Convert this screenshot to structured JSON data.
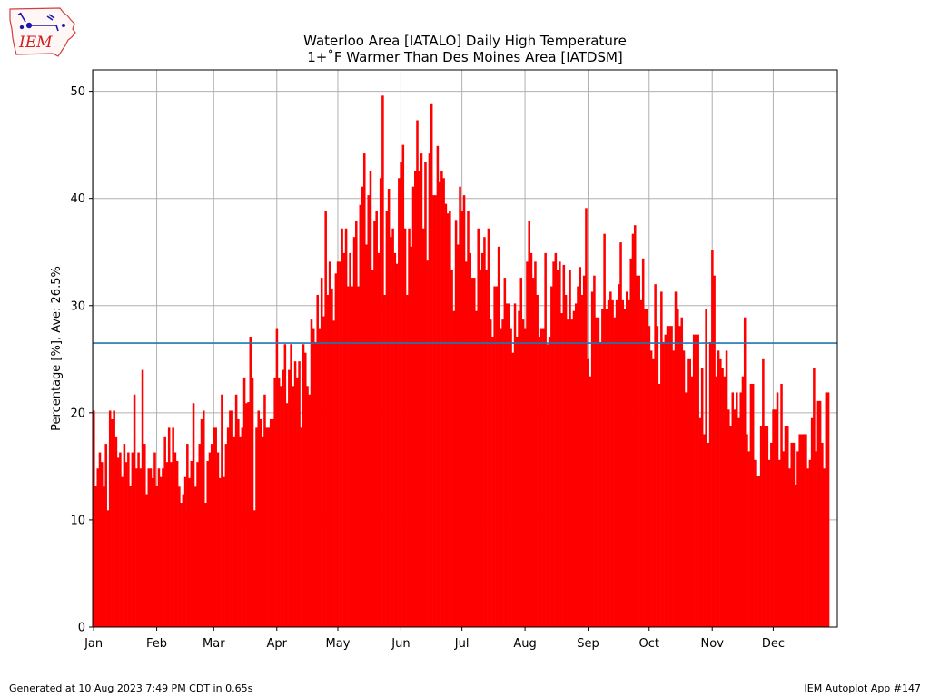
{
  "header": {
    "title_line1": "Waterloo Area [IATALO] Daily High Temperature",
    "title_line2": "1+˚F Warmer Than Des Moines Area [IATDSM]"
  },
  "logo": {
    "text": "IEM",
    "icon": "iowa-state-outline-logo-icon"
  },
  "footer": {
    "generated": "Generated at 10 Aug 2023 7:49 PM CDT in 0.65s",
    "app": "IEM Autoplot App #147"
  },
  "colors": {
    "bars": "#ff0000",
    "average_line": "#1f77b4",
    "grid": "#b0b0b0"
  },
  "chart_data": {
    "type": "bar",
    "title": "Waterloo Area [IATALO] Daily High Temperature\n1+˚F Warmer Than Des Moines Area [IATDSM]",
    "ylabel": "Percentage [%], Ave: 26.5%",
    "xlabel": "",
    "ylim": [
      0,
      52
    ],
    "xlim_doy": [
      1,
      366
    ],
    "yticks": [
      0,
      10,
      20,
      30,
      40,
      50
    ],
    "xticks": [
      {
        "label": "Jan",
        "doy": 1
      },
      {
        "label": "Feb",
        "doy": 32
      },
      {
        "label": "Mar",
        "doy": 60
      },
      {
        "label": "Apr",
        "doy": 91
      },
      {
        "label": "May",
        "doy": 121
      },
      {
        "label": "Jun",
        "doy": 152
      },
      {
        "label": "Jul",
        "doy": 182
      },
      {
        "label": "Aug",
        "doy": 213
      },
      {
        "label": "Sep",
        "doy": 244
      },
      {
        "label": "Oct",
        "doy": 274
      },
      {
        "label": "Nov",
        "doy": 305
      },
      {
        "label": "Dec",
        "doy": 335
      }
    ],
    "grid": true,
    "average": 26.5,
    "series": [
      {
        "day_of_year_start": 1,
        "values": [
          20.2,
          13.2,
          14.8,
          16.3,
          15.4,
          13.1,
          17.1,
          10.9,
          20.2,
          19.4,
          20.2,
          17.8,
          15.8,
          16.3,
          14.0,
          17.1,
          15.4,
          16.3,
          13.2,
          16.3,
          21.7,
          14.8,
          16.3,
          14.8,
          24.0,
          17.1,
          12.4,
          14.8,
          14.8,
          13.9,
          16.3,
          13.2,
          14.8,
          14.0,
          14.8,
          17.8,
          15.4,
          18.6,
          15.4,
          18.6,
          16.3,
          15.5,
          13.1,
          11.6,
          12.4,
          14.0,
          17.1,
          13.9,
          15.5,
          20.9,
          13.1,
          15.4,
          17.1,
          19.4,
          20.2,
          11.6,
          15.5,
          16.3,
          17.1,
          18.6,
          18.6,
          16.3,
          13.9,
          21.7,
          14.0,
          17.1,
          18.6,
          20.2,
          20.2,
          17.8,
          21.7,
          19.4,
          17.8,
          18.6,
          23.3,
          20.9,
          21.0,
          27.1,
          23.3,
          10.9,
          18.6,
          20.2,
          19.4,
          17.8,
          21.7,
          18.6,
          18.6,
          19.4,
          19.4,
          23.3,
          27.9,
          23.3,
          22.5,
          24.0,
          26.4,
          20.9,
          24.0,
          26.4,
          22.5,
          24.8,
          23.3,
          24.8,
          18.6,
          26.4,
          25.6,
          22.5,
          21.7,
          28.7,
          27.9,
          26.6,
          31.0,
          27.9,
          32.6,
          29.0,
          38.8,
          31.0,
          34.1,
          31.6,
          28.6,
          33.0,
          34.1,
          34.1,
          37.2,
          34.9,
          37.2,
          31.8,
          34.9,
          31.8,
          36.4,
          37.9,
          31.8,
          39.4,
          41.1,
          44.2,
          35.7,
          40.3,
          42.6,
          33.3,
          37.9,
          38.8,
          34.9,
          41.9,
          49.6,
          31.0,
          38.8,
          40.9,
          36.4,
          37.2,
          34.9,
          33.9,
          41.9,
          43.4,
          45.0,
          37.2,
          31.0,
          37.2,
          35.5,
          41.1,
          42.6,
          47.3,
          42.6,
          44.2,
          37.2,
          43.4,
          34.2,
          44.2,
          48.8,
          40.3,
          40.3,
          44.9,
          41.6,
          42.6,
          41.9,
          39.5,
          38.6,
          38.8,
          33.3,
          29.5,
          38.0,
          35.7,
          41.1,
          38.8,
          40.3,
          34.1,
          38.8,
          34.9,
          32.6,
          32.6,
          29.5,
          37.2,
          33.3,
          34.9,
          36.4,
          33.3,
          37.2,
          28.7,
          27.1,
          31.8,
          31.8,
          35.5,
          27.9,
          28.7,
          32.6,
          30.2,
          30.2,
          27.9,
          25.6,
          30.2,
          27.1,
          29.5,
          32.6,
          28.7,
          27.9,
          34.1,
          37.9,
          34.9,
          32.6,
          34.1,
          31.0,
          27.1,
          27.9,
          27.9,
          34.9,
          26.4,
          27.1,
          31.8,
          34.1,
          34.9,
          33.3,
          34.1,
          29.3,
          33.8,
          31.0,
          28.7,
          33.3,
          28.7,
          29.5,
          30.2,
          31.8,
          33.6,
          31.0,
          32.8,
          39.1,
          25.0,
          23.4,
          31.3,
          32.8,
          28.9,
          28.9,
          26.6,
          29.7,
          36.7,
          29.7,
          30.5,
          31.3,
          30.5,
          28.9,
          30.5,
          32.0,
          35.9,
          30.5,
          29.7,
          31.3,
          30.5,
          34.4,
          36.7,
          37.5,
          32.8,
          32.8,
          30.5,
          34.4,
          29.7,
          29.7,
          28.1,
          25.8,
          25.0,
          32.0,
          28.1,
          22.7,
          31.3,
          26.6,
          27.3,
          28.1,
          28.1,
          28.1,
          25.8,
          31.3,
          29.7,
          28.1,
          28.9,
          25.8,
          21.9,
          25.0,
          25.0,
          23.4,
          27.3,
          27.3,
          27.3,
          19.5,
          24.2,
          18.0,
          29.7,
          17.2,
          26.6,
          35.2,
          32.8,
          23.4,
          25.8,
          25.0,
          24.2,
          23.4,
          25.8,
          20.3,
          18.8,
          21.9,
          20.3,
          21.9,
          19.5,
          21.9,
          23.4,
          28.9,
          18.0,
          16.4,
          22.7,
          22.7,
          15.6,
          14.1,
          14.1,
          18.8,
          25.0,
          18.8,
          18.8,
          15.6,
          17.2,
          20.3,
          20.3,
          21.9,
          15.6,
          22.7,
          16.4,
          18.8,
          18.8,
          14.8,
          17.2,
          17.2,
          13.3,
          16.4,
          18.0,
          18.0,
          18.0,
          18.0,
          14.8,
          15.6,
          19.5,
          24.2,
          16.4,
          21.1,
          21.1,
          17.2,
          14.8,
          21.9,
          21.9
        ]
      }
    ]
  }
}
